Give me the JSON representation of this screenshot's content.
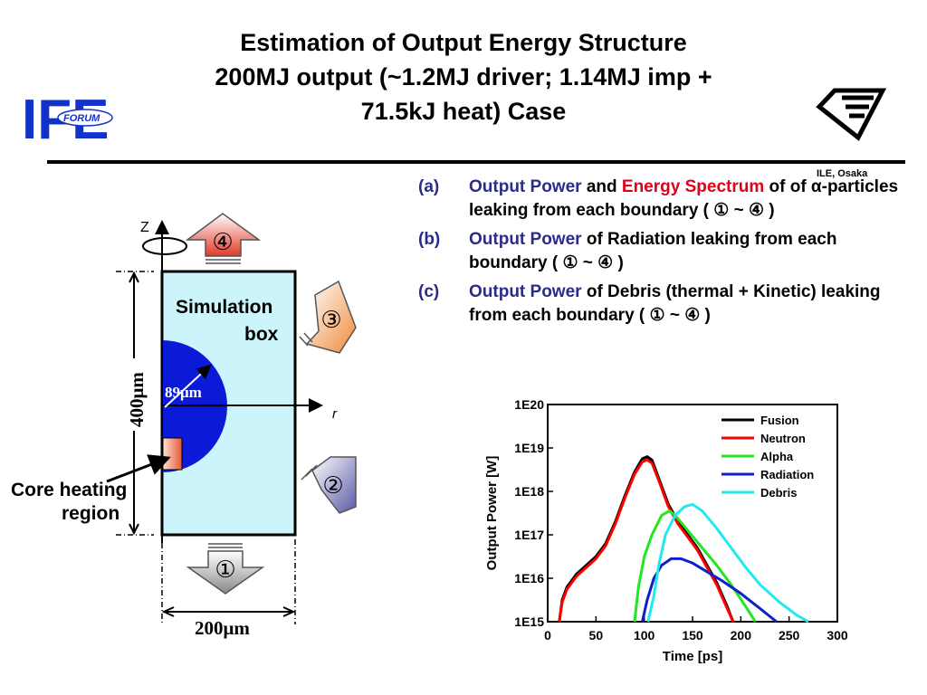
{
  "title": {
    "line1": "Estimation of Output Energy Structure",
    "line2": "200MJ output (~1.2MJ  driver; 1.14MJ imp +",
    "line3": "71.5kJ heat) Case"
  },
  "logos": {
    "ife": "IFE",
    "forum": "FORUM",
    "ile": "ILE, Osaka"
  },
  "diagram": {
    "z_label": "Z",
    "r_label": "r",
    "sim_line1": "Simulation",
    "sim_line2": "box",
    "radius_label": "89μm",
    "height_label": "400μm",
    "width_label": "200μm",
    "core_line1": "Core heating",
    "core_line2": "region",
    "arrow1": "①",
    "arrow2": "②",
    "arrow3": "③",
    "arrow4": "④",
    "colors": {
      "box": "#ccf5fb",
      "sphere": "#0a1ad6",
      "core": "#e8553a"
    }
  },
  "items": [
    {
      "label": "(a)",
      "hl1": "Output Power",
      "mid": " and ",
      "hl2": "Energy Spectrum",
      "rest": " of of α-particles leaking from each boundary ( ① ~ ④ )"
    },
    {
      "label": "(b)",
      "hl1": "Output Power",
      "rest": " of Radiation leaking from each boundary ( ① ~ ④ )"
    },
    {
      "label": "(c)",
      "hl1": "Output Power",
      "rest": " of Debris (thermal + Kinetic) leaking from each boundary ( ① ~ ④ )"
    }
  ],
  "chart_data": {
    "type": "line",
    "xlabel": "Time  [ps]",
    "ylabel": "Output Power  [W]",
    "x_ticks": [
      "0",
      "50",
      "100",
      "150",
      "200",
      "250",
      "300"
    ],
    "y_ticks": [
      "1E15",
      "1E16",
      "1E17",
      "1E18",
      "1E19",
      "1E20"
    ],
    "xlim": [
      0,
      300
    ],
    "ylim_log10": [
      15,
      20
    ],
    "legend_position": "top-right",
    "series": [
      {
        "name": "Fusion",
        "color": "#000000",
        "points": [
          [
            12,
            15
          ],
          [
            15,
            15.5
          ],
          [
            20,
            15.8
          ],
          [
            30,
            16.1
          ],
          [
            40,
            16.3
          ],
          [
            50,
            16.5
          ],
          [
            60,
            16.8
          ],
          [
            70,
            17.3
          ],
          [
            80,
            17.9
          ],
          [
            90,
            18.45
          ],
          [
            98,
            18.75
          ],
          [
            103,
            18.8
          ],
          [
            108,
            18.72
          ],
          [
            115,
            18.3
          ],
          [
            125,
            17.7
          ],
          [
            135,
            17.3
          ],
          [
            145,
            17.0
          ],
          [
            155,
            16.7
          ],
          [
            165,
            16.3
          ],
          [
            175,
            15.9
          ],
          [
            185,
            15.4
          ],
          [
            192,
            15
          ]
        ]
      },
      {
        "name": "Neutron",
        "color": "#ff0000",
        "points": [
          [
            12,
            15
          ],
          [
            15,
            15.45
          ],
          [
            20,
            15.75
          ],
          [
            30,
            16.05
          ],
          [
            40,
            16.25
          ],
          [
            50,
            16.45
          ],
          [
            60,
            16.75
          ],
          [
            70,
            17.25
          ],
          [
            80,
            17.85
          ],
          [
            90,
            18.4
          ],
          [
            98,
            18.68
          ],
          [
            103,
            18.73
          ],
          [
            108,
            18.65
          ],
          [
            115,
            18.25
          ],
          [
            125,
            17.65
          ],
          [
            135,
            17.25
          ],
          [
            145,
            16.95
          ],
          [
            155,
            16.65
          ],
          [
            165,
            16.25
          ],
          [
            175,
            15.85
          ],
          [
            185,
            15.35
          ],
          [
            192,
            15
          ]
        ]
      },
      {
        "name": "Alpha",
        "color": "#22e622",
        "points": [
          [
            90,
            15
          ],
          [
            94,
            15.8
          ],
          [
            100,
            16.5
          ],
          [
            108,
            17.0
          ],
          [
            118,
            17.45
          ],
          [
            126,
            17.55
          ],
          [
            132,
            17.45
          ],
          [
            145,
            17.1
          ],
          [
            160,
            16.7
          ],
          [
            175,
            16.3
          ],
          [
            190,
            15.85
          ],
          [
            205,
            15.35
          ],
          [
            215,
            15
          ]
        ]
      },
      {
        "name": "Radiation",
        "color": "#1020c8",
        "points": [
          [
            98,
            15
          ],
          [
            103,
            15.5
          ],
          [
            110,
            16.0
          ],
          [
            118,
            16.3
          ],
          [
            128,
            16.45
          ],
          [
            138,
            16.45
          ],
          [
            150,
            16.35
          ],
          [
            165,
            16.15
          ],
          [
            180,
            15.95
          ],
          [
            200,
            15.65
          ],
          [
            220,
            15.3
          ],
          [
            237,
            15
          ]
        ]
      },
      {
        "name": "Debris",
        "color": "#22e8f0",
        "points": [
          [
            104,
            15
          ],
          [
            110,
            15.6
          ],
          [
            115,
            16.3
          ],
          [
            122,
            17.0
          ],
          [
            132,
            17.45
          ],
          [
            142,
            17.65
          ],
          [
            150,
            17.7
          ],
          [
            160,
            17.55
          ],
          [
            175,
            17.15
          ],
          [
            190,
            16.7
          ],
          [
            205,
            16.25
          ],
          [
            220,
            15.85
          ],
          [
            240,
            15.45
          ],
          [
            258,
            15.15
          ],
          [
            270,
            15
          ]
        ]
      }
    ]
  }
}
